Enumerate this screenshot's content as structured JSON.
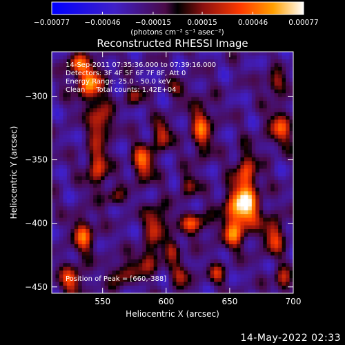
{
  "chart_data": {
    "type": "heatmap",
    "title": "Reconstructed RHESSI Image",
    "xlabel": "Heliocentric X (arcsec)",
    "ylabel": "Heliocentric Y (arcsec)",
    "xlim": [
      510,
      700
    ],
    "ylim": [
      -455,
      -265
    ],
    "x_ticks": [
      550,
      600,
      650,
      700
    ],
    "x_tick_labels": [
      "550",
      "600",
      "650",
      "700"
    ],
    "y_ticks": [
      -300,
      -350,
      -400,
      -450
    ],
    "y_tick_labels": [
      "-300",
      "-350",
      "-400",
      "-450"
    ],
    "colorbar": {
      "min": -0.00077,
      "max": 0.00077,
      "ticks": [
        -0.00077,
        -0.00046,
        -0.00015,
        0.00015,
        0.00046,
        0.00077
      ],
      "tick_labels": [
        "-0.00077",
        "-0.00046",
        "-0.00015",
        "0.00015",
        "0.00046",
        "0.00077"
      ],
      "units": "(photons cm⁻² s⁻¹ asec⁻²)"
    },
    "annotations": [
      "14-Sep-2011 07:35:36.000 to 07:39:16.000",
      "Detectors: 3F 4F 5F 6F 7F 8F, Att 0",
      "Energy Range: 25.0 - 50.0 keV",
      "Clean     Total counts: 1.42E+04"
    ],
    "peak_label": "Position of Peak = [660,-388]",
    "peak": [
      660,
      -388
    ],
    "sources": [
      {
        "x": 660,
        "y": -388,
        "sx": 9,
        "sy": 12,
        "a": 1.0
      },
      {
        "x": 663,
        "y": -360,
        "sx": 6,
        "sy": 12,
        "a": 0.55
      },
      {
        "x": 652,
        "y": -410,
        "sx": 6,
        "sy": 8,
        "a": 0.5
      },
      {
        "x": 540,
        "y": -290,
        "sx": 7,
        "sy": 10,
        "a": 0.75
      },
      {
        "x": 530,
        "y": -275,
        "sx": 6,
        "sy": 6,
        "a": 0.55
      },
      {
        "x": 548,
        "y": -320,
        "sx": 6,
        "sy": 10,
        "a": 0.6
      },
      {
        "x": 546,
        "y": -355,
        "sx": 6,
        "sy": 12,
        "a": 0.55
      },
      {
        "x": 535,
        "y": -410,
        "sx": 6,
        "sy": 10,
        "a": 0.6
      },
      {
        "x": 525,
        "y": -445,
        "sx": 7,
        "sy": 8,
        "a": 0.55
      },
      {
        "x": 565,
        "y": -440,
        "sx": 6,
        "sy": 7,
        "a": 0.45
      },
      {
        "x": 582,
        "y": -352,
        "sx": 6,
        "sy": 10,
        "a": 0.65
      },
      {
        "x": 597,
        "y": -330,
        "sx": 5,
        "sy": 8,
        "a": 0.5
      },
      {
        "x": 592,
        "y": -400,
        "sx": 6,
        "sy": 10,
        "a": 0.55
      },
      {
        "x": 585,
        "y": -430,
        "sx": 6,
        "sy": 8,
        "a": 0.5
      },
      {
        "x": 628,
        "y": -325,
        "sx": 6,
        "sy": 14,
        "a": 0.6
      },
      {
        "x": 618,
        "y": -370,
        "sx": 5,
        "sy": 6,
        "a": 0.4
      },
      {
        "x": 622,
        "y": -400,
        "sx": 8,
        "sy": 6,
        "a": 0.55
      },
      {
        "x": 605,
        "y": -420,
        "sx": 5,
        "sy": 6,
        "a": 0.45
      },
      {
        "x": 612,
        "y": -440,
        "sx": 6,
        "sy": 6,
        "a": 0.45
      },
      {
        "x": 690,
        "y": -325,
        "sx": 7,
        "sy": 10,
        "a": 0.55
      },
      {
        "x": 686,
        "y": -290,
        "sx": 6,
        "sy": 6,
        "a": 0.45
      },
      {
        "x": 685,
        "y": -410,
        "sx": 6,
        "sy": 10,
        "a": 0.55
      },
      {
        "x": 692,
        "y": -445,
        "sx": 5,
        "sy": 7,
        "a": 0.45
      },
      {
        "x": 560,
        "y": -380,
        "sx": 5,
        "sy": 5,
        "a": 0.35
      },
      {
        "x": 640,
        "y": -440,
        "sx": 5,
        "sy": 6,
        "a": 0.4
      },
      {
        "x": 575,
        "y": -300,
        "sx": 5,
        "sy": 6,
        "a": 0.35
      },
      {
        "x": 610,
        "y": -295,
        "sx": 5,
        "sy": 5,
        "a": 0.35
      }
    ]
  },
  "footer": {
    "date": "14-May-2022 02:33"
  }
}
